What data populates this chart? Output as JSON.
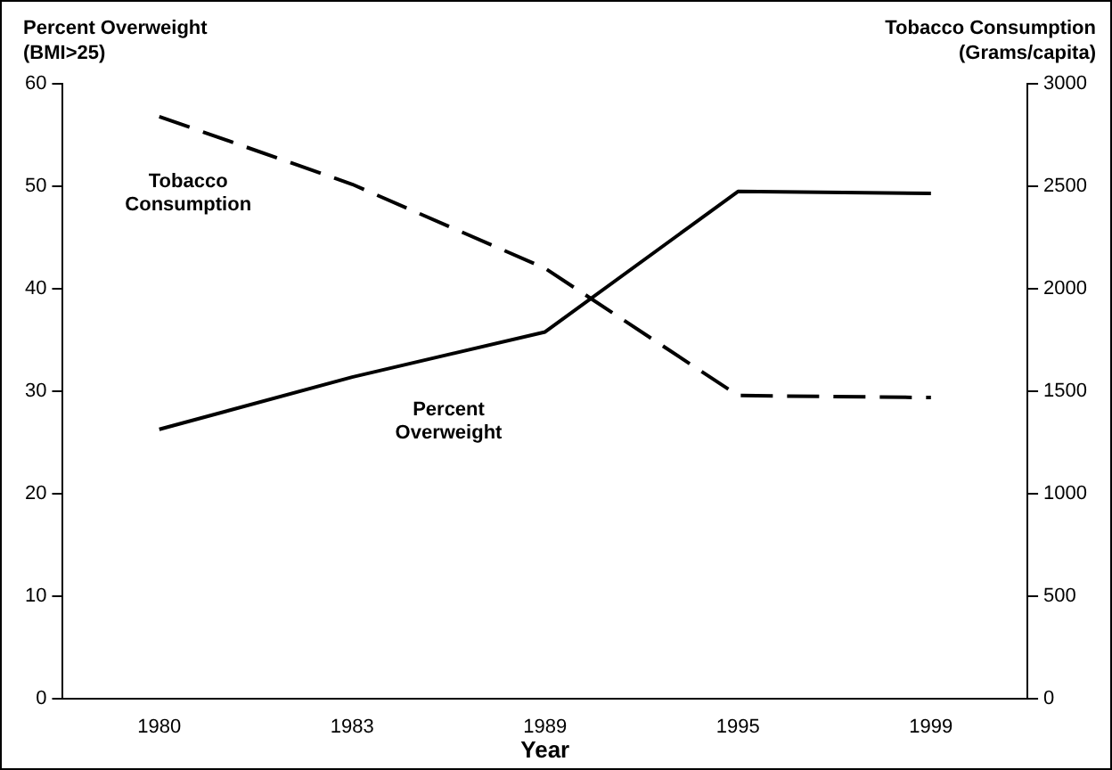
{
  "chart_data": {
    "type": "line",
    "xlabel": "Year",
    "ylabel": "Percent Overweight (BMI>25)",
    "y2label": "Tobacco Consumption (Grams/capita)",
    "categories": [
      "1980",
      "1983",
      "1989",
      "1995",
      "1999"
    ],
    "series": [
      {
        "name": "Percent Overweight",
        "color": "#000000",
        "line_style": "solid",
        "values": [
          26.3,
          31.4,
          35.8,
          49.5,
          49.3
        ]
      },
      {
        "name": "Tobacco Consumption",
        "color": "#000000",
        "line_style": "dashed",
        "axis": "y2",
        "values": [
          2840,
          2510,
          2100,
          1480,
          1470
        ]
      }
    ],
    "ylim": [
      0,
      60
    ],
    "yticks": [
      0,
      10,
      20,
      30,
      40,
      50,
      60
    ],
    "y2lim": [
      0,
      3000
    ],
    "y2ticks": [
      0,
      500,
      1000,
      1500,
      2000,
      2500,
      3000
    ],
    "grid": false,
    "legend": false,
    "marker": "none"
  }
}
